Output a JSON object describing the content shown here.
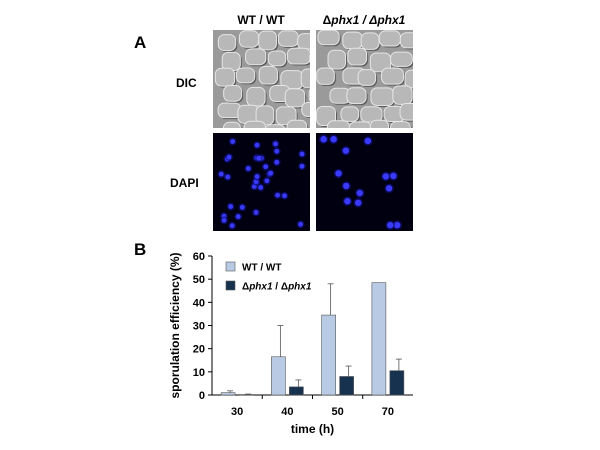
{
  "panel_a": {
    "letter": "A",
    "columns": [
      {
        "prefix": "",
        "strain": "WT / WT"
      },
      {
        "prefix": "Δ",
        "strain": "phx1 / Δphx1"
      }
    ],
    "rows": [
      "DIC",
      "DAPI"
    ]
  },
  "panel_b": {
    "letter": "B"
  },
  "chart_data": {
    "type": "bar",
    "categories": [
      "30",
      "40",
      "50",
      "70"
    ],
    "series": [
      {
        "name": "WT / WT",
        "color": "#b9cbe4",
        "values": [
          1,
          16.5,
          34.5,
          48.5
        ],
        "errors": [
          0.8,
          13.5,
          13.5,
          0
        ]
      },
      {
        "name": "Δphx1 / Δphx1",
        "color": "#17324f",
        "values": [
          0.2,
          3.5,
          8,
          10.5
        ],
        "errors": [
          0.2,
          3,
          4.5,
          5
        ]
      }
    ],
    "xlabel": "time (h)",
    "ylabel": "sporulation efficiency (%)",
    "ylim": [
      0,
      60
    ],
    "yticks": [
      0,
      10,
      20,
      30,
      40,
      50,
      60
    ],
    "grid": false,
    "legend": "top-left"
  }
}
